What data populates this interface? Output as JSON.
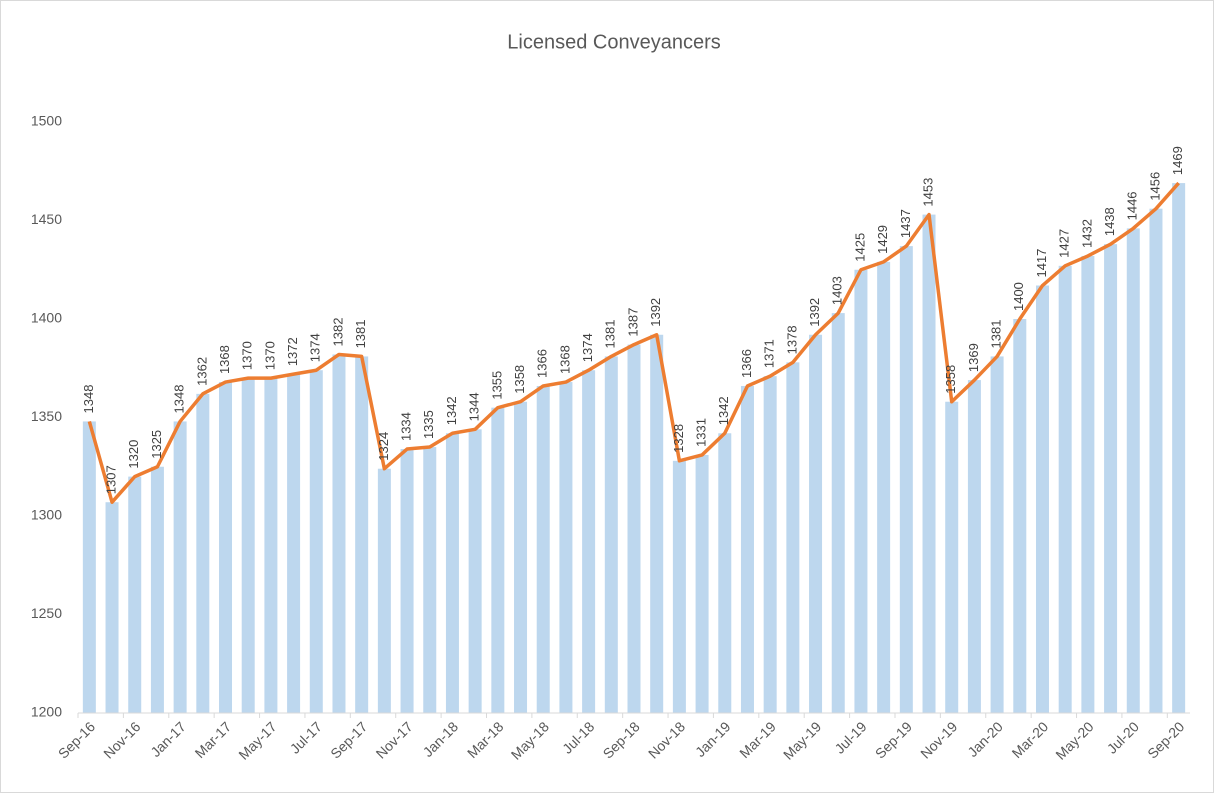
{
  "chart_data": {
    "type": "bar_line",
    "title": "Licensed Conveyancers",
    "categories": [
      "Sep-16",
      null,
      "Nov-16",
      null,
      "Jan-17",
      null,
      "Mar-17",
      null,
      "May-17",
      null,
      "Jul-17",
      null,
      "Sep-17",
      null,
      "Nov-17",
      null,
      "Jan-18",
      null,
      "Mar-18",
      null,
      "May-18",
      null,
      "Jul-18",
      null,
      "Sep-18",
      null,
      "Nov-18",
      null,
      "Jan-19",
      null,
      "Mar-19",
      null,
      "May-19",
      null,
      "Jul-19",
      null,
      "Sep-19",
      null,
      "Nov-19",
      null,
      "Jan-20",
      null,
      "Mar-20",
      null,
      "May-20",
      null,
      "Jul-20",
      null,
      "Sep-20"
    ],
    "values": [
      1348,
      1307,
      1320,
      1325,
      1348,
      1362,
      1368,
      1370,
      1370,
      1372,
      1374,
      1382,
      1381,
      1324,
      1334,
      1335,
      1342,
      1344,
      1355,
      1358,
      1366,
      1368,
      1374,
      1381,
      1387,
      1392,
      1328,
      1331,
      1342,
      1366,
      1371,
      1378,
      1392,
      1403,
      1425,
      1429,
      1437,
      1453,
      1358,
      1369,
      1381,
      1400,
      1417,
      1427,
      1432,
      1438,
      1446,
      1456,
      1469
    ],
    "bar_color": "#bdd7ee",
    "line_color": "#ed7d31",
    "ylim": [
      1200,
      1500
    ],
    "yticks": [
      1200,
      1250,
      1300,
      1350,
      1400,
      1450,
      1500
    ],
    "grid": false
  }
}
